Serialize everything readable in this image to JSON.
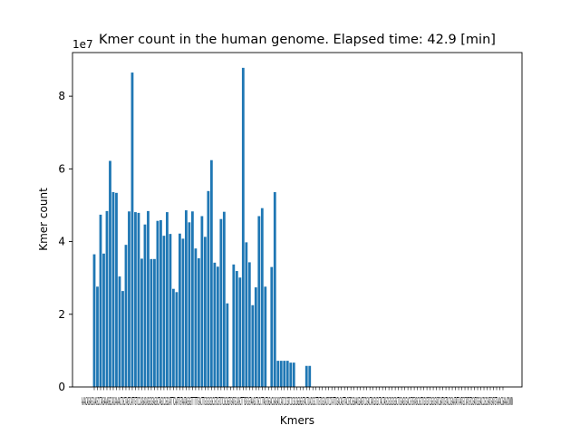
{
  "chart_data": {
    "type": "bar",
    "title": "Kmer count in the human genome. Elapsed time: 42.9 [min]",
    "xlabel": "Kmers",
    "ylabel": "Kmer count",
    "offset_text": "1e7",
    "ylim": [
      0,
      9.2
    ],
    "yticks": [
      0,
      2,
      4,
      6,
      8
    ],
    "bar_color": "#1f77b4",
    "x_tick_labels_overlapping": "AAACAGAGCAAGCCTAGAAAGGCACAAAACTGCTAGTCATTGTCCCAGACAGGCGAGGCTAGCCGGCATTTCAATTGTAATAGGGTTTTTTGACTTGCGCGGCGTCGTCTCGCGGTGATGCAGCTTTGTGGTAAGCTGCCTTAGTGGACGAGACCATCCCGTCCCGCGGGGGTACTCACCGCTTGTCGCACTCCTATTCGACAGTTACGTCGGAACGAGTCCGACTACGCGCTACTAGCGCGCGGCTCGAGCGACGTGTAGCGCTCGCGTCGGCGATCGATCGTACCGAATATTAATGCTATGTCGATCGGACCGCGATGATGTAAACGAAACNNN",
    "values": [
      3.65,
      2.76,
      4.74,
      3.67,
      4.84,
      6.22,
      5.36,
      5.34,
      3.04,
      2.64,
      3.91,
      4.83,
      8.65,
      4.81,
      4.79,
      3.53,
      4.47,
      4.84,
      3.52,
      3.52,
      4.57,
      4.59,
      4.16,
      4.81,
      4.21,
      2.7,
      2.61,
      4.22,
      4.08,
      4.86,
      4.53,
      4.83,
      3.81,
      3.54,
      4.7,
      4.13,
      5.39,
      6.24,
      3.42,
      3.31,
      4.62,
      4.82,
      2.3,
      0,
      3.37,
      3.19,
      3.01,
      8.78,
      3.98,
      3.43,
      2.25,
      2.74,
      4.7,
      4.92,
      2.76,
      0,
      3.3,
      5.36,
      0.72,
      0.72,
      0.72,
      0.72,
      0.67,
      0.67,
      0,
      0,
      0,
      0.58,
      0.58,
      0,
      0,
      0,
      0,
      0,
      0,
      0,
      0,
      0,
      0,
      0,
      0,
      0,
      0,
      0,
      0,
      0,
      0,
      0,
      0,
      0,
      0,
      0,
      0,
      0,
      0,
      0,
      0,
      0,
      0,
      0,
      0,
      0,
      0,
      0,
      0,
      0,
      0,
      0,
      0,
      0,
      0,
      0,
      0,
      0,
      0,
      0,
      0,
      0,
      0,
      0,
      0,
      0,
      0,
      0,
      0,
      0,
      0,
      0,
      0,
      0
    ]
  }
}
